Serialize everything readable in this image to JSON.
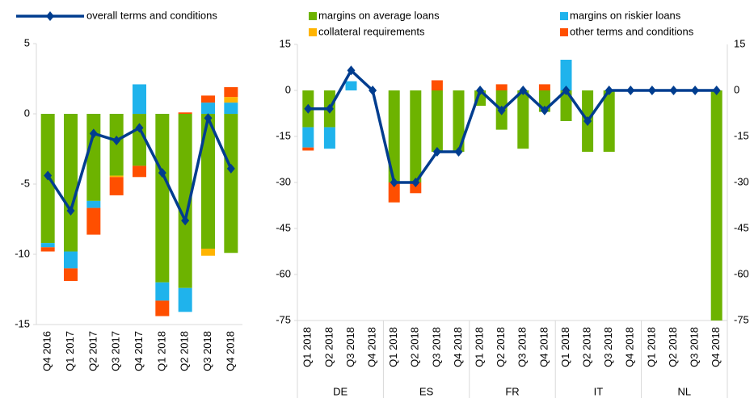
{
  "chart_data": [
    {
      "type": "bar",
      "stacked": true,
      "categories": [
        "Q4 2016",
        "Q1 2017",
        "Q2 2017",
        "Q3 2017",
        "Q4 2017",
        "Q1 2018",
        "Q2 2018",
        "Q3 2018",
        "Q4 2018"
      ],
      "ylim": [
        -15,
        5
      ],
      "yticks": [
        -15,
        -10,
        -5,
        0,
        5
      ],
      "series": [
        {
          "name": "margins on average loans",
          "type": "bar",
          "color": "#6db300",
          "values": [
            -9.2,
            -9.8,
            -6.2,
            -4.4,
            -3.7,
            -12.0,
            -12.4,
            -9.6,
            -9.9
          ]
        },
        {
          "name": "margins on riskier loans",
          "type": "bar",
          "color": "#1fb3ec",
          "values": [
            -0.3,
            -1.2,
            -0.5,
            0,
            2.1,
            -1.3,
            -1.7,
            0.8,
            0.8
          ]
        },
        {
          "name": "collateral requirements",
          "type": "bar",
          "color": "#ffb400",
          "values": [
            0,
            0,
            0,
            -0.1,
            0,
            0,
            0,
            -0.5,
            0.4
          ]
        },
        {
          "name": "other terms and conditions",
          "type": "bar",
          "color": "#ff4f00",
          "values": [
            -0.3,
            -0.9,
            -1.9,
            -1.3,
            -0.8,
            -1.1,
            0.1,
            0.5,
            0.7
          ]
        },
        {
          "name": "overall terms and conditions",
          "type": "line",
          "color": "#003d8f",
          "values": [
            -4.4,
            -6.9,
            -1.4,
            -1.9,
            -1.0,
            -4.2,
            -7.6,
            -0.3,
            -3.9
          ]
        }
      ]
    },
    {
      "type": "bar",
      "stacked": true,
      "groups": [
        "DE",
        "ES",
        "FR",
        "IT",
        "NL"
      ],
      "categories": [
        "Q1 2018",
        "Q2 2018",
        "Q3 2018",
        "Q4 2018",
        "Q1 2018",
        "Q2 2018",
        "Q3 2018",
        "Q4 2018",
        "Q1 2018",
        "Q2 2018",
        "Q3 2018",
        "Q4 2018",
        "Q1 2018",
        "Q2 2018",
        "Q3 2018",
        "Q4 2018",
        "Q1 2018",
        "Q2 2018",
        "Q3 2018",
        "Q4 2018"
      ],
      "ylim": [
        -75,
        15
      ],
      "yticks": [
        -75,
        -60,
        -45,
        -30,
        -15,
        0,
        15
      ],
      "series": [
        {
          "name": "margins on average loans",
          "type": "bar",
          "color": "#6db300",
          "values": [
            -12,
            -12,
            0,
            0,
            -30,
            -30,
            -20,
            -20,
            -5,
            -12.8,
            -19,
            -7,
            -10,
            -20,
            -20,
            0,
            0,
            0,
            0,
            -75
          ]
        },
        {
          "name": "margins on riskier loans",
          "type": "bar",
          "color": "#1fb3ec",
          "values": [
            -6.6,
            -7,
            3,
            0,
            0,
            0,
            0,
            0,
            0,
            0,
            0,
            0,
            10,
            0,
            0,
            0,
            0,
            0,
            0,
            0
          ]
        },
        {
          "name": "collateral requirements",
          "type": "bar",
          "color": "#ffb400",
          "values": [
            0,
            0,
            0,
            0,
            0,
            0,
            0,
            0,
            0,
            0,
            0,
            0,
            0,
            0,
            0,
            0,
            0,
            0,
            0,
            0
          ]
        },
        {
          "name": "other terms and conditions",
          "type": "bar",
          "color": "#ff4f00",
          "values": [
            -1,
            0,
            0,
            0,
            -6.5,
            -3.5,
            3.3,
            0,
            0,
            2,
            0,
            2,
            0,
            0,
            0,
            0,
            0,
            0,
            0,
            0
          ]
        },
        {
          "type": "line",
          "color": "#003d8f",
          "values": [
            -6,
            -6,
            6.5,
            0,
            -30,
            -30,
            -20,
            -20,
            0,
            -6.5,
            0,
            -6.5,
            0,
            -10,
            0,
            0,
            0,
            0,
            0,
            0
          ]
        }
      ]
    }
  ]
}
